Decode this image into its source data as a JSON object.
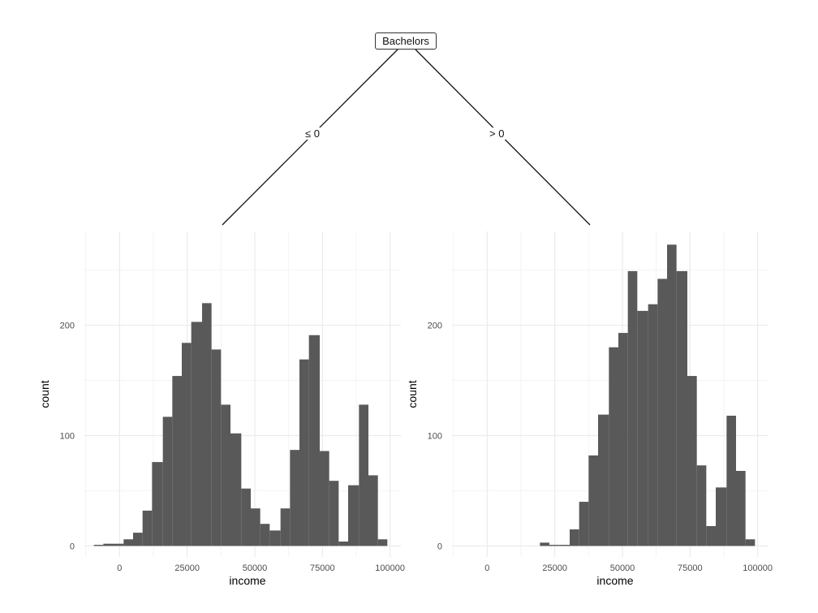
{
  "tree": {
    "root_label": "Bachelors",
    "left_edge_label": "≤  0",
    "right_edge_label": ">  0"
  },
  "chart_data": [
    {
      "type": "bar",
      "subtype": "histogram",
      "xlabel": "income",
      "ylabel": "count",
      "xlim": [
        -13000,
        104000
      ],
      "ylim": [
        -10,
        285
      ],
      "x_ticks": [
        0,
        25000,
        50000,
        75000,
        100000
      ],
      "x_tick_labels": [
        "0",
        "25000",
        "50000",
        "75000",
        "100000"
      ],
      "y_ticks": [
        0,
        100,
        200
      ],
      "y_tick_labels": [
        "0",
        "100",
        "200"
      ],
      "grid": true,
      "bar_color": "#595959",
      "bins": [
        {
          "x0": -9500,
          "x1": -6000,
          "count": 1
        },
        {
          "x0": -6000,
          "x1": -2500,
          "count": 2
        },
        {
          "x0": -2500,
          "x1": 1500,
          "count": 2
        },
        {
          "x0": 1500,
          "x1": 5000,
          "count": 6
        },
        {
          "x0": 5000,
          "x1": 8500,
          "count": 12
        },
        {
          "x0": 8500,
          "x1": 12000,
          "count": 32
        },
        {
          "x0": 12000,
          "x1": 16000,
          "count": 76
        },
        {
          "x0": 16000,
          "x1": 19500,
          "count": 117
        },
        {
          "x0": 19500,
          "x1": 23000,
          "count": 154
        },
        {
          "x0": 23000,
          "x1": 26500,
          "count": 184
        },
        {
          "x0": 26500,
          "x1": 30500,
          "count": 203
        },
        {
          "x0": 30500,
          "x1": 34000,
          "count": 220
        },
        {
          "x0": 34000,
          "x1": 37500,
          "count": 178
        },
        {
          "x0": 37500,
          "x1": 41000,
          "count": 128
        },
        {
          "x0": 41000,
          "x1": 45000,
          "count": 102
        },
        {
          "x0": 45000,
          "x1": 48500,
          "count": 52
        },
        {
          "x0": 48500,
          "x1": 52000,
          "count": 34
        },
        {
          "x0": 52000,
          "x1": 55500,
          "count": 20
        },
        {
          "x0": 55500,
          "x1": 59500,
          "count": 14
        },
        {
          "x0": 59500,
          "x1": 63000,
          "count": 34
        },
        {
          "x0": 63000,
          "x1": 66500,
          "count": 87
        },
        {
          "x0": 66500,
          "x1": 70000,
          "count": 169
        },
        {
          "x0": 70000,
          "x1": 74000,
          "count": 191
        },
        {
          "x0": 74000,
          "x1": 77500,
          "count": 86
        },
        {
          "x0": 77500,
          "x1": 81000,
          "count": 59
        },
        {
          "x0": 81000,
          "x1": 84500,
          "count": 4
        },
        {
          "x0": 84500,
          "x1": 88500,
          "count": 55
        },
        {
          "x0": 88500,
          "x1": 92000,
          "count": 128
        },
        {
          "x0": 92000,
          "x1": 95500,
          "count": 64
        },
        {
          "x0": 95500,
          "x1": 99000,
          "count": 6
        }
      ]
    },
    {
      "type": "bar",
      "subtype": "histogram",
      "xlabel": "income",
      "ylabel": "count",
      "xlim": [
        -13000,
        104000
      ],
      "ylim": [
        -10,
        285
      ],
      "x_ticks": [
        0,
        25000,
        50000,
        75000,
        100000
      ],
      "x_tick_labels": [
        "0",
        "25000",
        "50000",
        "75000",
        "100000"
      ],
      "y_ticks": [
        0,
        100,
        200
      ],
      "y_tick_labels": [
        "0",
        "100",
        "200"
      ],
      "grid": true,
      "bar_color": "#595959",
      "bins": [
        {
          "x0": 19500,
          "x1": 23000,
          "count": 3
        },
        {
          "x0": 23000,
          "x1": 26500,
          "count": 1
        },
        {
          "x0": 26500,
          "x1": 30500,
          "count": 1
        },
        {
          "x0": 30500,
          "x1": 34000,
          "count": 15
        },
        {
          "x0": 34000,
          "x1": 37500,
          "count": 40
        },
        {
          "x0": 37500,
          "x1": 41000,
          "count": 82
        },
        {
          "x0": 41000,
          "x1": 45000,
          "count": 119
        },
        {
          "x0": 45000,
          "x1": 48500,
          "count": 180
        },
        {
          "x0": 48500,
          "x1": 52000,
          "count": 193
        },
        {
          "x0": 52000,
          "x1": 55500,
          "count": 249
        },
        {
          "x0": 55500,
          "x1": 59500,
          "count": 213
        },
        {
          "x0": 59500,
          "x1": 63000,
          "count": 219
        },
        {
          "x0": 63000,
          "x1": 66500,
          "count": 242
        },
        {
          "x0": 66500,
          "x1": 70000,
          "count": 273
        },
        {
          "x0": 70000,
          "x1": 74000,
          "count": 249
        },
        {
          "x0": 74000,
          "x1": 77500,
          "count": 154
        },
        {
          "x0": 77500,
          "x1": 81000,
          "count": 73
        },
        {
          "x0": 81000,
          "x1": 84500,
          "count": 18
        },
        {
          "x0": 84500,
          "x1": 88500,
          "count": 53
        },
        {
          "x0": 88500,
          "x1": 92000,
          "count": 118
        },
        {
          "x0": 92000,
          "x1": 95500,
          "count": 68
        },
        {
          "x0": 95500,
          "x1": 99000,
          "count": 6
        }
      ]
    }
  ]
}
